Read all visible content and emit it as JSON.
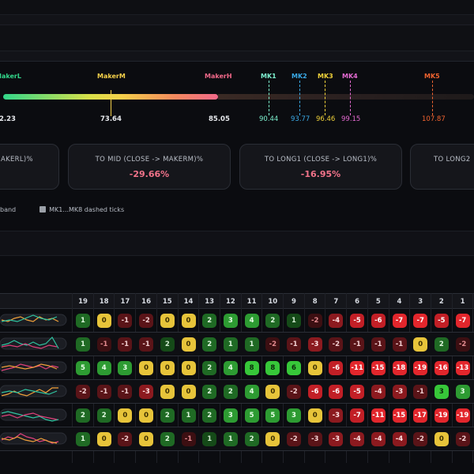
{
  "makers": [
    {
      "label": "MakerL",
      "value": "2.23",
      "color": "#32d68a"
    },
    {
      "label": "MakerM",
      "value": "73.64",
      "color": "#f5d04a"
    },
    {
      "label": "MakerH",
      "value": "85.05",
      "color": "#f2698a"
    },
    {
      "label": "MK1",
      "value": "90.44",
      "color": "#7ef2d0"
    },
    {
      "label": "MK2",
      "value": "93.77",
      "color": "#3aa9e6"
    },
    {
      "label": "MK3",
      "value": "96.46",
      "color": "#f0d23a"
    },
    {
      "label": "MK4",
      "value": "99.15",
      "color": "#e46ad1"
    },
    {
      "label": "MK5",
      "value": "107.87",
      "color": "#f0632f"
    }
  ],
  "cards": [
    {
      "title": "AKERL)%",
      "value": ""
    },
    {
      "title": "TO MID (CLOSE -> MAKERM)%",
      "value": "-29.66%"
    },
    {
      "title": "TO LONG1 (CLOSE -> LONG1)%",
      "value": "-16.95%"
    },
    {
      "title": "TO LONG2",
      "value": ""
    }
  ],
  "legend": {
    "band": "band",
    "ticks": "MK1...MK8 dashed ticks"
  },
  "grid": {
    "headers": [
      "19",
      "18",
      "17",
      "16",
      "15",
      "14",
      "13",
      "12",
      "11",
      "10",
      "9",
      "8",
      "7",
      "6",
      "5",
      "4",
      "3",
      "2",
      "1"
    ],
    "rows": [
      [
        {
          "v": "1",
          "c": "g1"
        },
        {
          "v": "0",
          "c": "y"
        },
        {
          "v": "-1",
          "c": "r1"
        },
        {
          "v": "-2",
          "c": "r1"
        },
        {
          "v": "0",
          "c": "y"
        },
        {
          "v": "0",
          "c": "y"
        },
        {
          "v": "2",
          "c": "g1"
        },
        {
          "v": "3",
          "c": "g2"
        },
        {
          "v": "4",
          "c": "g2"
        },
        {
          "v": "2",
          "c": "g1"
        },
        {
          "v": "1",
          "c": "gd"
        },
        {
          "v": "-2",
          "c": "rd"
        },
        {
          "v": "-4",
          "c": "r2"
        },
        {
          "v": "-5",
          "c": "r3"
        },
        {
          "v": "-6",
          "c": "r3"
        },
        {
          "v": "-7",
          "c": "r4"
        },
        {
          "v": "-7",
          "c": "r4"
        },
        {
          "v": "-5",
          "c": "r3"
        },
        {
          "v": "-7",
          "c": "r4"
        }
      ],
      [
        {
          "v": "1",
          "c": "g1"
        },
        {
          "v": "-1",
          "c": "rd"
        },
        {
          "v": "-1",
          "c": "r1"
        },
        {
          "v": "-1",
          "c": "r1"
        },
        {
          "v": "2",
          "c": "gd"
        },
        {
          "v": "0",
          "c": "y"
        },
        {
          "v": "2",
          "c": "g1"
        },
        {
          "v": "1",
          "c": "g1"
        },
        {
          "v": "1",
          "c": "g1"
        },
        {
          "v": "-2",
          "c": "rd"
        },
        {
          "v": "-1",
          "c": "r1"
        },
        {
          "v": "-3",
          "c": "r2"
        },
        {
          "v": "-2",
          "c": "r1"
        },
        {
          "v": "-1",
          "c": "r1"
        },
        {
          "v": "-1",
          "c": "r1"
        },
        {
          "v": "-1",
          "c": "r1"
        },
        {
          "v": "0",
          "c": "y"
        },
        {
          "v": "2",
          "c": "g1"
        },
        {
          "v": "-2",
          "c": "rd"
        }
      ],
      [
        {
          "v": "5",
          "c": "g2"
        },
        {
          "v": "4",
          "c": "g2"
        },
        {
          "v": "3",
          "c": "g2"
        },
        {
          "v": "0",
          "c": "y"
        },
        {
          "v": "0",
          "c": "y"
        },
        {
          "v": "0",
          "c": "y"
        },
        {
          "v": "2",
          "c": "g1"
        },
        {
          "v": "4",
          "c": "g2"
        },
        {
          "v": "8",
          "c": "g3"
        },
        {
          "v": "8",
          "c": "g3"
        },
        {
          "v": "6",
          "c": "g3"
        },
        {
          "v": "0",
          "c": "y"
        },
        {
          "v": "-6",
          "c": "r3"
        },
        {
          "v": "-11",
          "c": "r4"
        },
        {
          "v": "-15",
          "c": "r4"
        },
        {
          "v": "-18",
          "c": "r4"
        },
        {
          "v": "-19",
          "c": "r4"
        },
        {
          "v": "-16",
          "c": "r4"
        },
        {
          "v": "-13",
          "c": "r4"
        }
      ],
      [
        {
          "v": "-2",
          "c": "r1"
        },
        {
          "v": "-1",
          "c": "r1"
        },
        {
          "v": "-1",
          "c": "r1"
        },
        {
          "v": "-3",
          "c": "r2"
        },
        {
          "v": "0",
          "c": "y"
        },
        {
          "v": "0",
          "c": "y"
        },
        {
          "v": "2",
          "c": "g1"
        },
        {
          "v": "2",
          "c": "g1"
        },
        {
          "v": "4",
          "c": "g2"
        },
        {
          "v": "0",
          "c": "y"
        },
        {
          "v": "-2",
          "c": "r1"
        },
        {
          "v": "-6",
          "c": "r3"
        },
        {
          "v": "-6",
          "c": "r3"
        },
        {
          "v": "-5",
          "c": "r3"
        },
        {
          "v": "-4",
          "c": "r2"
        },
        {
          "v": "-3",
          "c": "r2"
        },
        {
          "v": "-1",
          "c": "r1"
        },
        {
          "v": "3",
          "c": "g3"
        },
        {
          "v": "3",
          "c": "g2"
        }
      ],
      [
        {
          "v": "2",
          "c": "g1"
        },
        {
          "v": "2",
          "c": "g1"
        },
        {
          "v": "0",
          "c": "y"
        },
        {
          "v": "0",
          "c": "y"
        },
        {
          "v": "2",
          "c": "g1"
        },
        {
          "v": "1",
          "c": "g1"
        },
        {
          "v": "2",
          "c": "g1"
        },
        {
          "v": "3",
          "c": "g2"
        },
        {
          "v": "5",
          "c": "g2"
        },
        {
          "v": "5",
          "c": "g2"
        },
        {
          "v": "3",
          "c": "g2"
        },
        {
          "v": "0",
          "c": "y"
        },
        {
          "v": "-3",
          "c": "r2"
        },
        {
          "v": "-7",
          "c": "r3"
        },
        {
          "v": "-11",
          "c": "r4"
        },
        {
          "v": "-15",
          "c": "r4"
        },
        {
          "v": "-17",
          "c": "r4"
        },
        {
          "v": "-19",
          "c": "r4"
        },
        {
          "v": "-19",
          "c": "r4"
        }
      ],
      [
        {
          "v": "1",
          "c": "g1"
        },
        {
          "v": "0",
          "c": "y"
        },
        {
          "v": "-2",
          "c": "r1"
        },
        {
          "v": "0",
          "c": "y"
        },
        {
          "v": "2",
          "c": "g1"
        },
        {
          "v": "-1",
          "c": "rd"
        },
        {
          "v": "1",
          "c": "gd"
        },
        {
          "v": "1",
          "c": "g1"
        },
        {
          "v": "2",
          "c": "g1"
        },
        {
          "v": "0",
          "c": "y"
        },
        {
          "v": "-2",
          "c": "r1"
        },
        {
          "v": "-3",
          "c": "r1"
        },
        {
          "v": "-3",
          "c": "r2"
        },
        {
          "v": "-4",
          "c": "r2"
        },
        {
          "v": "-4",
          "c": "r2"
        },
        {
          "v": "-4",
          "c": "r2"
        },
        {
          "v": "-2",
          "c": "r1"
        },
        {
          "v": "0",
          "c": "y"
        },
        {
          "v": "-2",
          "c": "r1"
        }
      ]
    ]
  }
}
